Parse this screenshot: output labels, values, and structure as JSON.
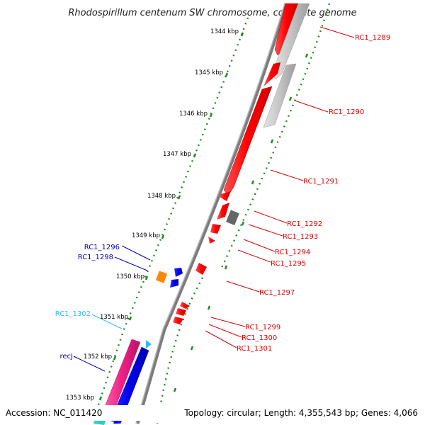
{
  "title": "Rhodospirillum centenum SW chromosome, complete genome",
  "accession": "Accession: NC_011420",
  "summary": "Topology: circular; Length: 4,355,543 bp; Genes: 4,066",
  "ticks": [
    "1344 kbp",
    "1345 kbp",
    "1346 kbp",
    "1347 kbp",
    "1348 kbp",
    "1349 kbp",
    "1350 kbp",
    "1351 kbp",
    "1352 kbp",
    "1353 kbp"
  ],
  "genes": [
    {
      "label": "RC1_1289",
      "color": "#dd0000"
    },
    {
      "label": "RC1_1290",
      "color": "#dd0000"
    },
    {
      "label": "RC1_1291",
      "color": "#dd0000"
    },
    {
      "label": "RC1_1292",
      "color": "#dd0000"
    },
    {
      "label": "RC1_1293",
      "color": "#dd0000"
    },
    {
      "label": "RC1_1294",
      "color": "#dd0000"
    },
    {
      "label": "RC1_1295",
      "color": "#dd0000"
    },
    {
      "label": "RC1_1297",
      "color": "#dd0000"
    },
    {
      "label": "RC1_1299",
      "color": "#dd0000"
    },
    {
      "label": "RC1_1300",
      "color": "#dd0000"
    },
    {
      "label": "RC1_1301",
      "color": "#dd0000"
    },
    {
      "label": "RC1_1296",
      "color": "#0000bb"
    },
    {
      "label": "RC1_1298",
      "color": "#0000bb"
    },
    {
      "label": "RC1_1302",
      "color": "#33bbee"
    },
    {
      "label": "recJ",
      "color": "#0000bb"
    }
  ],
  "colors": {
    "forward_strand": "#ff0000",
    "reverse_strand": "#0000ff",
    "pseudo_gray": "#bbbbbb",
    "dark_gray": "#666666",
    "orange": "#ff8800",
    "magenta": "#ee2288",
    "cyan": "#33bbee",
    "tick_green": "#228822",
    "backbone": "#888888"
  }
}
